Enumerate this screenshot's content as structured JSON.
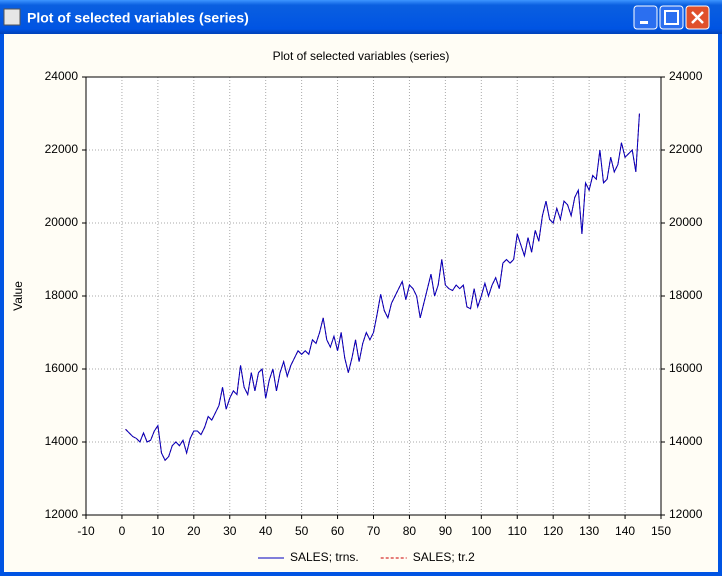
{
  "window": {
    "title": "Plot of selected variables (series)"
  },
  "chart_data": {
    "type": "line",
    "title": "Plot of selected variables (series)",
    "y_label": "Value",
    "x": [
      1,
      2,
      3,
      4,
      5,
      6,
      7,
      8,
      9,
      10,
      11,
      12,
      13,
      14,
      15,
      16,
      17,
      18,
      19,
      20,
      21,
      22,
      23,
      24,
      25,
      26,
      27,
      28,
      29,
      30,
      31,
      32,
      33,
      34,
      35,
      36,
      37,
      38,
      39,
      40,
      41,
      42,
      43,
      44,
      45,
      46,
      47,
      48,
      49,
      50,
      51,
      52,
      53,
      54,
      55,
      56,
      57,
      58,
      59,
      60,
      61,
      62,
      63,
      64,
      65,
      66,
      67,
      68,
      69,
      70,
      71,
      72,
      73,
      74,
      75,
      76,
      77,
      78,
      79,
      80,
      81,
      82,
      83,
      84,
      85,
      86,
      87,
      88,
      89,
      90,
      91,
      92,
      93,
      94,
      95,
      96,
      97,
      98,
      99,
      100,
      101,
      102,
      103,
      104,
      105,
      106,
      107,
      108,
      109,
      110,
      111,
      112,
      113,
      114,
      115,
      116,
      117,
      118,
      119,
      120,
      121,
      122,
      123,
      124,
      125,
      126,
      127,
      128,
      129,
      130,
      131,
      132,
      133,
      134,
      135,
      136,
      137,
      138,
      139,
      140,
      141,
      142,
      143,
      144
    ],
    "series": [
      {
        "name": "SALES; trns.",
        "color": "#0000c0",
        "dash": false,
        "values": [
          14350,
          14250,
          14150,
          14100,
          14000,
          14250,
          14000,
          14050,
          14300,
          14450,
          13700,
          13500,
          13600,
          13900,
          14000,
          13900,
          14050,
          13700,
          14100,
          14300,
          14300,
          14200,
          14400,
          14700,
          14600,
          14800,
          15000,
          15500,
          14900,
          15200,
          15400,
          15300,
          16100,
          15500,
          15300,
          15900,
          15400,
          15900,
          16000,
          15200,
          15700,
          16000,
          15400,
          15900,
          16200,
          15800,
          16100,
          16300,
          16500,
          16400,
          16500,
          16400,
          16800,
          16700,
          17000,
          17400,
          16800,
          16600,
          16900,
          16500,
          17000,
          16300,
          15900,
          16300,
          16800,
          16200,
          16700,
          17000,
          16800,
          17000,
          17500,
          18050,
          17600,
          17400,
          17800,
          18000,
          18200,
          18400,
          17900,
          18300,
          18200,
          18000,
          17400,
          17800,
          18200,
          18600,
          18000,
          18300,
          19000,
          18300,
          18200,
          18150,
          18300,
          18200,
          18300,
          17700,
          17650,
          18200,
          17700,
          18000,
          18350,
          18000,
          18300,
          18500,
          18200,
          18900,
          19000,
          18900,
          19000,
          19700,
          19400,
          19100,
          19600,
          19200,
          19800,
          19500,
          20200,
          20600,
          20100,
          20000,
          20400,
          20100,
          20600,
          20500,
          20200,
          20700,
          20900,
          19700,
          21100,
          20900,
          21300,
          21200,
          22000,
          21100,
          21200,
          21800,
          21400,
          21600,
          22200,
          21800,
          21900,
          22000,
          21400,
          23000
        ]
      },
      {
        "name": "SALES; tr.2",
        "color": "#cc0000",
        "dash": true,
        "values": [
          14350,
          14250,
          14150,
          14100,
          14000,
          14250,
          14000,
          14050,
          14300,
          14450,
          13700,
          13500,
          13600,
          13900,
          14000,
          13900,
          14050,
          13700,
          14100,
          14300,
          14300,
          14200,
          14400,
          14700,
          14600,
          14800,
          15000,
          15500,
          14900,
          15200,
          15400,
          15300,
          16100,
          15500,
          15300,
          15900,
          15400,
          15900,
          16000,
          15200,
          15700,
          16000,
          15400,
          15900,
          16200,
          15800,
          16100,
          16300,
          16500,
          16400,
          16500,
          16400,
          16800,
          16700,
          17000,
          17400,
          16800,
          16600,
          16900,
          16500,
          17000,
          16300,
          15900,
          16300,
          16800,
          16200,
          16700,
          17000,
          16800,
          17000,
          17500,
          18050,
          17600,
          17400,
          17800,
          18000,
          18200,
          18400,
          17900,
          18300,
          18200,
          18000,
          17400,
          17800,
          18200,
          18600,
          18000,
          18300,
          19000,
          18300,
          18200,
          18150,
          18300,
          18200,
          18300,
          17700,
          17650,
          18200,
          17700,
          18000,
          18350,
          18000,
          18300,
          18500,
          18200,
          18900,
          19000,
          18900,
          19000,
          19700,
          19400,
          19100,
          19600,
          19200,
          19800,
          19500,
          20200,
          20600,
          20100,
          20000,
          20400,
          20100,
          20600,
          20500,
          20200,
          20700,
          20900,
          19700,
          21100,
          20900,
          21300,
          21200,
          22000,
          21100,
          21200,
          21800,
          21400,
          21600,
          22200,
          21800,
          21900,
          22000,
          21400,
          23000
        ]
      }
    ],
    "xlim": [
      -10,
      150
    ],
    "xticks": [
      -10,
      0,
      10,
      20,
      30,
      40,
      50,
      60,
      70,
      80,
      90,
      100,
      110,
      120,
      130,
      140,
      150
    ],
    "ylim": [
      12000,
      24000
    ],
    "yticks": [
      12000,
      14000,
      16000,
      18000,
      20000,
      22000,
      24000
    ],
    "y2lim": [
      12000,
      24000
    ],
    "y2ticks": [
      12000,
      14000,
      16000,
      18000,
      20000,
      22000,
      24000
    ],
    "grid": true,
    "legend": "bottom"
  }
}
